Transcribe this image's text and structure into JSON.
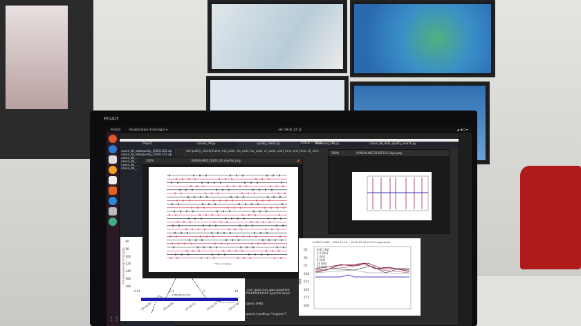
{
  "monitor": {
    "brand": "ProArt"
  },
  "topbar": {
    "activities": "Attività",
    "app_menu": "Visualizzatore di immagini ▾",
    "clock": "ven 18 dic 12:12"
  },
  "atom": {
    "title": "quality_check.py — ~/QUALITY_CHECK — Atom",
    "project_label": "Project",
    "tabs": [
      "canvas_dd.py",
      "quality_check.py",
      "download_SMI.py",
      "canva_db_data_quality_search.py"
    ],
    "files": [
      "canva_db_dataquality_20201126.sql",
      "canva_db_dataquality_20201127.sql",
      "canva_db_...",
      "canva_db_...",
      "canva_db_...",
      "canva_db_..."
    ],
    "code_line": "def quality_check(fname, net_code, sta_code, loc_code, ch_code, start_time, end_time, ch_sens",
    "code_bottom": [
      "_sum_gaps,max_gaps,quadratic",
      "########## Spectral levels",
      "tabella ISMD",
      "special_handling=\"ringlaser\")"
    ]
  },
  "viewer_left": {
    "zoom": "100%",
    "title": "IV.MILN.HNZ.20201216.dayPlot.png",
    "xlabel": "Time in minutes"
  },
  "viewer_right": {
    "zoom": "100%",
    "title": "IV.MILN.HNZ.20201216.Gaps.png"
  },
  "psd_plot": {
    "title": "IV.SSCT..HNZ - 2020-10-16 -- 2020-10-16 (47/47 segments)",
    "ylabel": "PSD",
    "yticks": [
      "-25",
      "-50",
      "-75",
      "-100",
      "-125",
      "-150",
      "-175",
      "-200"
    ],
    "legend": [
      "0.01 [Hz]",
      "0.1 [Hz]",
      "1 [Hz]",
      "5 [Hz]",
      "10 [Hz]",
      "20 [Hz]"
    ],
    "colors": [
      "#7a1a3a",
      "#4a4ac8",
      "#aaaaaa",
      "#c07080",
      "#555555",
      "#8a2040"
    ]
  },
  "spectrum_plot": {
    "xlabel": "Frequency [Hz]",
    "ylabel": "PSD Amplitude [m²/s⁴/Hz] [dB]",
    "xticks": [
      "0.01",
      "0.1",
      "1",
      "10"
    ],
    "yticks": [
      "-60",
      "-80",
      "-100",
      "-120",
      "-140",
      "-160",
      "-180"
    ],
    "time_ticks": [
      "10:16:00",
      "10:16:03",
      "10:16:06",
      "10:16:09",
      "10:16:12",
      "10:16:15",
      "10:16:18",
      "10:16:21",
      "10:17:00"
    ]
  }
}
